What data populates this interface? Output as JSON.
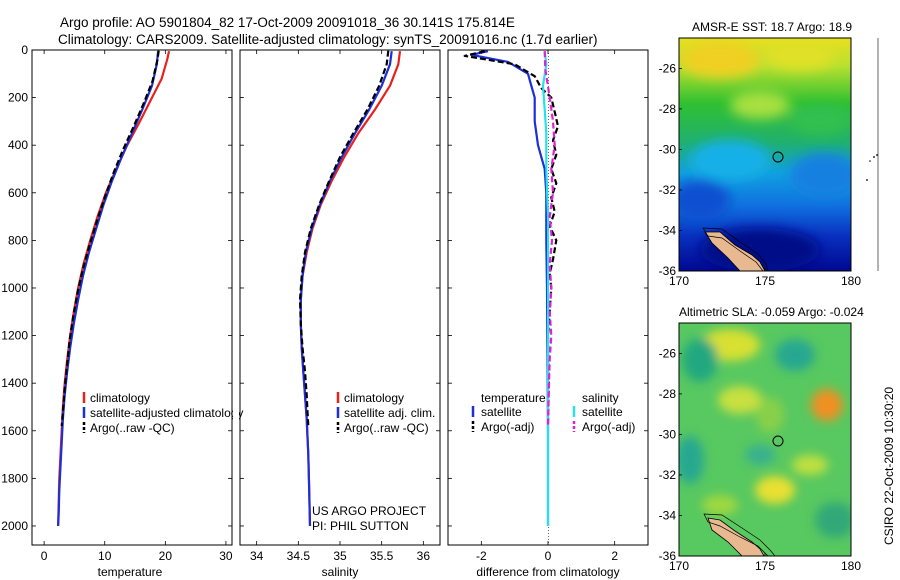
{
  "title_line1": "Argo profile: AO 5901804_82 17-Oct-2009 20091018_36 30.141S 175.814E",
  "title_line2": "Climatology: CARS2009. Satellite-adjusted climatology: synTS_20091016.nc (1.7d earlier)",
  "credit_line1": "US ARGO PROJECT",
  "credit_line2": "PI: PHIL SUTTON",
  "side_stamp": "CSIRO 22-Oct-2009 10:30:20",
  "colors": {
    "red": "#e8211c",
    "blue": "#1c2fd8",
    "black": "#000000",
    "cyan": "#28e0e8",
    "magenta": "#e020d8"
  },
  "chart_data": [
    {
      "type": "line",
      "xlabel": "temperature",
      "xlim": [
        -2,
        31
      ],
      "ylim": [
        0,
        2080
      ],
      "y_inverted": true,
      "xticks": [
        0,
        10,
        20,
        30
      ],
      "yticks": [
        0,
        200,
        400,
        600,
        800,
        1000,
        1200,
        1400,
        1600,
        1800,
        2000
      ],
      "legend": {
        "placement": "center-right",
        "entries": [
          "climatology",
          "satellite-adjusted climatology",
          "Argo(..raw -QC)"
        ]
      },
      "series": [
        {
          "name": "climatology",
          "color": "red",
          "dash": false,
          "points": [
            [
              20.6,
              5
            ],
            [
              20.3,
              40
            ],
            [
              19.4,
              120
            ],
            [
              17.8,
              200
            ],
            [
              15.8,
              300
            ],
            [
              13.7,
              400
            ],
            [
              11.9,
              500
            ],
            [
              10.2,
              600
            ],
            [
              8.8,
              700
            ],
            [
              7.6,
              800
            ],
            [
              6.5,
              900
            ],
            [
              5.6,
              1000
            ],
            [
              4.9,
              1100
            ],
            [
              4.3,
              1200
            ],
            [
              3.8,
              1300
            ],
            [
              3.4,
              1400
            ],
            [
              3.1,
              1500
            ],
            [
              2.9,
              1600
            ],
            [
              2.7,
              1700
            ],
            [
              2.5,
              1800
            ],
            [
              2.4,
              1900
            ],
            [
              2.3,
              2000
            ]
          ]
        },
        {
          "name": "satellite-adjusted climatology",
          "color": "blue",
          "dash": false,
          "points": [
            [
              18.8,
              5
            ],
            [
              18.6,
              60
            ],
            [
              17.8,
              150
            ],
            [
              16.2,
              250
            ],
            [
              14.5,
              350
            ],
            [
              12.8,
              450
            ],
            [
              11.2,
              550
            ],
            [
              9.8,
              650
            ],
            [
              8.6,
              750
            ],
            [
              7.4,
              850
            ],
            [
              6.4,
              950
            ],
            [
              5.6,
              1050
            ],
            [
              4.9,
              1150
            ],
            [
              4.3,
              1250
            ],
            [
              3.8,
              1350
            ],
            [
              3.4,
              1450
            ],
            [
              3.1,
              1550
            ],
            [
              2.9,
              1650
            ],
            [
              2.7,
              1750
            ],
            [
              2.5,
              1850
            ],
            [
              2.4,
              1950
            ],
            [
              2.3,
              2000
            ]
          ]
        },
        {
          "name": "Argo(..raw -QC)",
          "color": "black",
          "dash": true,
          "points": [
            [
              18.9,
              3
            ],
            [
              18.7,
              40
            ],
            [
              17.9,
              130
            ],
            [
              16.5,
              220
            ],
            [
              14.8,
              320
            ],
            [
              13.0,
              420
            ],
            [
              11.4,
              520
            ],
            [
              10.0,
              620
            ],
            [
              8.7,
              720
            ],
            [
              7.5,
              820
            ],
            [
              6.4,
              920
            ],
            [
              5.5,
              1020
            ],
            [
              4.8,
              1120
            ],
            [
              4.2,
              1220
            ],
            [
              3.8,
              1320
            ],
            [
              3.4,
              1420
            ],
            [
              3.1,
              1520
            ],
            [
              2.9,
              1580
            ]
          ]
        }
      ]
    },
    {
      "type": "line",
      "xlabel": "salinity",
      "xlim": [
        33.8,
        36.2
      ],
      "ylim": [
        0,
        2080
      ],
      "y_inverted": true,
      "xticks": [
        34,
        34.5,
        35,
        35.5,
        36
      ],
      "legend": {
        "placement": "center-right",
        "entries": [
          "climatology",
          "satellite adj. clim.",
          "Argo(..raw -QC)"
        ]
      },
      "series": [
        {
          "name": "climatology",
          "color": "red",
          "dash": false,
          "points": [
            [
              35.72,
              5
            ],
            [
              35.7,
              60
            ],
            [
              35.6,
              150
            ],
            [
              35.42,
              250
            ],
            [
              35.22,
              350
            ],
            [
              35.05,
              450
            ],
            [
              34.9,
              550
            ],
            [
              34.77,
              650
            ],
            [
              34.67,
              750
            ],
            [
              34.6,
              850
            ],
            [
              34.55,
              950
            ],
            [
              34.53,
              1050
            ],
            [
              34.53,
              1150
            ],
            [
              34.54,
              1250
            ],
            [
              34.56,
              1350
            ],
            [
              34.58,
              1450
            ],
            [
              34.6,
              1550
            ],
            [
              34.62,
              1700
            ],
            [
              34.63,
              1850
            ],
            [
              34.64,
              2000
            ]
          ]
        },
        {
          "name": "satellite adj. clim.",
          "color": "blue",
          "dash": false,
          "points": [
            [
              35.62,
              5
            ],
            [
              35.6,
              60
            ],
            [
              35.5,
              150
            ],
            [
              35.35,
              250
            ],
            [
              35.18,
              350
            ],
            [
              35.02,
              450
            ],
            [
              34.88,
              550
            ],
            [
              34.76,
              650
            ],
            [
              34.66,
              750
            ],
            [
              34.59,
              850
            ],
            [
              34.55,
              950
            ],
            [
              34.53,
              1050
            ],
            [
              34.53,
              1150
            ],
            [
              34.54,
              1250
            ],
            [
              34.56,
              1350
            ],
            [
              34.58,
              1450
            ],
            [
              34.6,
              1550
            ],
            [
              34.62,
              1700
            ],
            [
              34.63,
              1850
            ],
            [
              34.64,
              2000
            ]
          ]
        },
        {
          "name": "Argo(..raw -QC)",
          "color": "black",
          "dash": true,
          "points": [
            [
              35.58,
              3
            ],
            [
              35.56,
              60
            ],
            [
              35.47,
              150
            ],
            [
              35.33,
              250
            ],
            [
              35.16,
              350
            ],
            [
              35.0,
              450
            ],
            [
              34.87,
              550
            ],
            [
              34.75,
              650
            ],
            [
              34.65,
              750
            ],
            [
              34.58,
              850
            ],
            [
              34.54,
              950
            ],
            [
              34.52,
              1050
            ],
            [
              34.53,
              1150
            ],
            [
              34.55,
              1250
            ],
            [
              34.58,
              1350
            ],
            [
              34.6,
              1450
            ],
            [
              34.61,
              1520
            ],
            [
              34.62,
              1580
            ]
          ]
        }
      ]
    },
    {
      "type": "line",
      "xlabel": "difference from climatology",
      "xlim": [
        -3,
        3
      ],
      "ylim": [
        0,
        2080
      ],
      "y_inverted": true,
      "xticks": [
        -2,
        0,
        2
      ],
      "legend": {
        "placement": "center-right",
        "entries": [
          "temperature",
          "satellite",
          "Argo(-adj)",
          "salinity",
          "satellite",
          "Argo(-adj)"
        ]
      },
      "series": [
        {
          "name": "satellite",
          "group": "temperature",
          "color": "blue",
          "dash": false,
          "points": [
            [
              -1.8,
              5
            ],
            [
              -2.3,
              20
            ],
            [
              -1.2,
              50
            ],
            [
              -0.6,
              100
            ],
            [
              -0.5,
              150
            ],
            [
              -0.4,
              200
            ],
            [
              -0.4,
              300
            ],
            [
              -0.3,
              400
            ],
            [
              -0.1,
              500
            ],
            [
              -0.05,
              600
            ],
            [
              -0.05,
              800
            ],
            [
              -0.03,
              1000
            ],
            [
              -0.02,
              1200
            ],
            [
              -0.01,
              1400
            ],
            [
              0,
              1600
            ],
            [
              0,
              2000
            ]
          ]
        },
        {
          "name": "Argo(-adj)",
          "group": "temperature",
          "color": "black",
          "dash": true,
          "points": [
            [
              -1.9,
              5
            ],
            [
              -2.5,
              25
            ],
            [
              -1.0,
              60
            ],
            [
              -0.4,
              110
            ],
            [
              -0.2,
              160
            ],
            [
              0.1,
              200
            ],
            [
              0.2,
              260
            ],
            [
              0.3,
              320
            ],
            [
              0.15,
              380
            ],
            [
              0.25,
              440
            ],
            [
              0.1,
              500
            ],
            [
              0.25,
              560
            ],
            [
              0.1,
              620
            ],
            [
              0.2,
              680
            ],
            [
              0.05,
              740
            ],
            [
              0.25,
              800
            ],
            [
              0.15,
              880
            ],
            [
              0.05,
              940
            ],
            [
              0.1,
              1000
            ],
            [
              0.05,
              1100
            ],
            [
              0,
              1200
            ],
            [
              0.02,
              1400
            ],
            [
              0,
              1580
            ]
          ]
        },
        {
          "name": "satellite",
          "group": "salinity",
          "color": "cyan",
          "dash": false,
          "points": [
            [
              -0.1,
              5
            ],
            [
              -0.05,
              60
            ],
            [
              -0.15,
              150
            ],
            [
              -0.1,
              250
            ],
            [
              -0.05,
              350
            ],
            [
              -0.05,
              500
            ],
            [
              0,
              700
            ],
            [
              0,
              1000
            ],
            [
              0,
              1500
            ],
            [
              0,
              2000
            ]
          ]
        },
        {
          "name": "Argo(-adj)",
          "group": "salinity",
          "color": "magenta",
          "dash": true,
          "points": [
            [
              -0.1,
              5
            ],
            [
              -0.08,
              80
            ],
            [
              0.05,
              200
            ],
            [
              0.15,
              300
            ],
            [
              0.2,
              400
            ],
            [
              0.1,
              500
            ],
            [
              0.15,
              600
            ],
            [
              0.05,
              700
            ],
            [
              0.12,
              800
            ],
            [
              0.05,
              900
            ],
            [
              0.1,
              1000
            ],
            [
              0.05,
              1100
            ],
            [
              0.1,
              1200
            ],
            [
              0.05,
              1300
            ],
            [
              0.02,
              1450
            ],
            [
              0,
              1580
            ]
          ]
        }
      ]
    },
    {
      "type": "heatmap",
      "title": "AMSR-E SST: 18.7  Argo: 18.9",
      "xlim": [
        170,
        180
      ],
      "ylim": [
        -36,
        -24.5
      ],
      "xticks": [
        170,
        175,
        180
      ],
      "yticks": [
        -26,
        -28,
        -30,
        -32,
        -34,
        -36
      ],
      "marker": [
        175.814,
        -30.141
      ]
    },
    {
      "type": "heatmap",
      "title": "Altimetric SLA: -0.059  Argo: -0.024",
      "xlim": [
        170,
        180
      ],
      "ylim": [
        -36,
        -24.5
      ],
      "xticks": [
        170,
        175,
        180
      ],
      "yticks": [
        -26,
        -28,
        -30,
        -32,
        -34,
        -36
      ],
      "marker": [
        175.814,
        -30.141
      ]
    }
  ]
}
